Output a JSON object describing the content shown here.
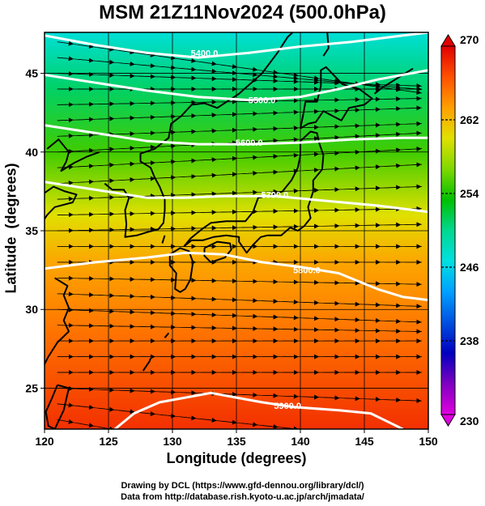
{
  "title": "MSM 21Z11Nov2024 (500.0hPa)",
  "x_axis": {
    "label": "Longitude (degrees)",
    "range": [
      120,
      150
    ],
    "ticks": [
      120,
      125,
      130,
      135,
      140,
      145,
      150
    ]
  },
  "y_axis": {
    "label": "Latitude  (degrees)",
    "range": [
      22.4,
      47.6
    ],
    "ticks": [
      25,
      30,
      35,
      40,
      45
    ]
  },
  "colorbar": {
    "min": 230,
    "max": 270,
    "ticks": [
      230,
      238,
      246,
      254,
      262,
      270
    ],
    "colors": [
      "#e000e0",
      "#8000c0",
      "#0000c0",
      "#0050e0",
      "#00a0ff",
      "#00e0e0",
      "#00d890",
      "#00c000",
      "#80d800",
      "#e0e000",
      "#ffa000",
      "#ff5000",
      "#e00000"
    ]
  },
  "temperature_field": {
    "stops": [
      {
        "lat": 47.6,
        "value": 247
      },
      {
        "lat": 44,
        "value": 251
      },
      {
        "lat": 40,
        "value": 255
      },
      {
        "lat": 36,
        "value": 260
      },
      {
        "lat": 33,
        "value": 263
      },
      {
        "lat": 29,
        "value": 265
      },
      {
        "lat": 22.4,
        "value": 268
      }
    ]
  },
  "contours": [
    {
      "label": "5400.0",
      "label_at": [
        132.5,
        46.3
      ],
      "points": [
        [
          120,
          47.4
        ],
        [
          124,
          46.8
        ],
        [
          128,
          46.3
        ],
        [
          132,
          46.0
        ],
        [
          136,
          46.3
        ],
        [
          140,
          46.7
        ],
        [
          144,
          47.0
        ],
        [
          148,
          47.4
        ],
        [
          150,
          47.6
        ]
      ]
    },
    {
      "label": "5500.0",
      "label_at": [
        137,
        43.3
      ],
      "points": [
        [
          120,
          44.9
        ],
        [
          124,
          44.4
        ],
        [
          128,
          43.9
        ],
        [
          132,
          43.5
        ],
        [
          136,
          43.3
        ],
        [
          140,
          43.5
        ],
        [
          143,
          44.0
        ],
        [
          146,
          44.6
        ],
        [
          150,
          45.2
        ]
      ]
    },
    {
      "label": "5600.0",
      "label_at": [
        136,
        40.6
      ],
      "points": [
        [
          120,
          41.7
        ],
        [
          124,
          41.2
        ],
        [
          128,
          40.7
        ],
        [
          132,
          40.5
        ],
        [
          136,
          40.5
        ],
        [
          140,
          40.6
        ],
        [
          144,
          40.8
        ],
        [
          148,
          40.9
        ],
        [
          150,
          40.9
        ]
      ]
    },
    {
      "label": "5700.0",
      "label_at": [
        138,
        37.3
      ],
      "points": [
        [
          120,
          38.1
        ],
        [
          124,
          37.6
        ],
        [
          128,
          37.1
        ],
        [
          131,
          37.1
        ],
        [
          134,
          37.2
        ],
        [
          138,
          37.2
        ],
        [
          142,
          36.9
        ],
        [
          146,
          36.6
        ],
        [
          150,
          36.2
        ]
      ]
    },
    {
      "label": "5800.0",
      "label_at": [
        140.5,
        32.5
      ],
      "points": [
        [
          120,
          32.6
        ],
        [
          124,
          33.0
        ],
        [
          128,
          33.3
        ],
        [
          131,
          33.6
        ],
        [
          134,
          33.5
        ],
        [
          137,
          33.0
        ],
        [
          140,
          32.7
        ],
        [
          143,
          32.3
        ],
        [
          146,
          31.3
        ],
        [
          148,
          30.8
        ],
        [
          150,
          30.6
        ]
      ]
    },
    {
      "label": "5900.0",
      "label_at": [
        139,
        23.9
      ],
      "points": [
        [
          125.5,
          22.4
        ],
        [
          127,
          23.4
        ],
        [
          129,
          24.1
        ],
        [
          131,
          24.4
        ],
        [
          133,
          24.7
        ],
        [
          135,
          24.4
        ],
        [
          137,
          24.1
        ],
        [
          139.5,
          23.8
        ],
        [
          143,
          23.6
        ],
        [
          145.5,
          23.4
        ],
        [
          147,
          22.8
        ],
        [
          148,
          22.4
        ]
      ]
    }
  ],
  "flow": {
    "rows": [
      {
        "lat": 47.0,
        "dir": -8
      },
      {
        "lat": 46.0,
        "dir": -5
      },
      {
        "lat": 45.0,
        "dir": -2
      },
      {
        "lat": 44.0,
        "dir": 0
      },
      {
        "lat": 43.0,
        "dir": 1
      },
      {
        "lat": 42.0,
        "dir": 2
      },
      {
        "lat": 41.0,
        "dir": 2
      },
      {
        "lat": 40.0,
        "dir": 3
      },
      {
        "lat": 39.0,
        "dir": 3
      },
      {
        "lat": 38.0,
        "dir": 3
      },
      {
        "lat": 37.0,
        "dir": 2
      },
      {
        "lat": 36.0,
        "dir": 1
      },
      {
        "lat": 35.0,
        "dir": 1
      },
      {
        "lat": 34.0,
        "dir": 0
      },
      {
        "lat": 33.0,
        "dir": 0
      },
      {
        "lat": 32.0,
        "dir": -1
      },
      {
        "lat": 31.0,
        "dir": -2
      },
      {
        "lat": 30.0,
        "dir": -2
      },
      {
        "lat": 29.0,
        "dir": -1
      },
      {
        "lat": 28.0,
        "dir": 0
      },
      {
        "lat": 27.0,
        "dir": 0
      },
      {
        "lat": 26.0,
        "dir": 0
      },
      {
        "lat": 25.0,
        "dir": -2
      },
      {
        "lat": 24.0,
        "dir": -6
      },
      {
        "lat": 23.0,
        "dir": -10
      }
    ],
    "lons": [
      121,
      122.6,
      124.2,
      125.8,
      127.4,
      129.0,
      130.6,
      132.2,
      133.8,
      135.4,
      137.0,
      138.6,
      140.2,
      141.8,
      143.4,
      145.0,
      146.6,
      148.2,
      149.5
    ]
  },
  "coastlines": [
    {
      "name": "honshu",
      "points": [
        [
          130.9,
          34.0
        ],
        [
          131.5,
          34.4
        ],
        [
          132.4,
          34.4
        ],
        [
          133.2,
          34.6
        ],
        [
          134.2,
          34.7
        ],
        [
          135.2,
          34.6
        ],
        [
          135.2,
          34.3
        ],
        [
          135.8,
          33.6
        ],
        [
          136.3,
          34.1
        ],
        [
          136.9,
          34.6
        ],
        [
          137.4,
          34.7
        ],
        [
          138.5,
          34.7
        ],
        [
          139.2,
          35.2
        ],
        [
          139.8,
          35.0
        ],
        [
          140.3,
          35.3
        ],
        [
          140.8,
          35.8
        ],
        [
          140.6,
          36.5
        ],
        [
          141.0,
          37.5
        ],
        [
          141.0,
          38.2
        ],
        [
          141.7,
          38.9
        ],
        [
          141.8,
          39.8
        ],
        [
          141.5,
          40.5
        ],
        [
          141.3,
          41.2
        ],
        [
          140.8,
          41.3
        ],
        [
          140.0,
          40.7
        ],
        [
          140.0,
          39.8
        ],
        [
          139.8,
          39.0
        ],
        [
          139.3,
          38.2
        ],
        [
          138.6,
          37.5
        ],
        [
          137.5,
          37.2
        ],
        [
          136.7,
          37.1
        ],
        [
          136.3,
          36.2
        ],
        [
          135.7,
          35.6
        ],
        [
          134.2,
          35.6
        ],
        [
          133.0,
          35.5
        ],
        [
          132.3,
          35.1
        ],
        [
          131.4,
          34.5
        ],
        [
          130.9,
          34.0
        ]
      ]
    },
    {
      "name": "hokkaido",
      "points": [
        [
          140.0,
          41.5
        ],
        [
          140.6,
          41.8
        ],
        [
          141.2,
          41.9
        ],
        [
          141.8,
          42.6
        ],
        [
          143.2,
          42.0
        ],
        [
          143.8,
          42.8
        ],
        [
          145.0,
          43.0
        ],
        [
          145.6,
          43.4
        ],
        [
          144.6,
          44.0
        ],
        [
          143.3,
          44.3
        ],
        [
          142.0,
          45.4
        ],
        [
          141.6,
          45.2
        ],
        [
          141.6,
          44.2
        ],
        [
          141.3,
          43.2
        ],
        [
          140.4,
          43.2
        ],
        [
          140.2,
          42.3
        ],
        [
          140.0,
          41.5
        ]
      ]
    },
    {
      "name": "kyushu",
      "points": [
        [
          129.8,
          33.5
        ],
        [
          130.6,
          33.9
        ],
        [
          131.3,
          33.7
        ],
        [
          131.6,
          33.0
        ],
        [
          131.4,
          31.9
        ],
        [
          131.0,
          31.3
        ],
        [
          130.6,
          31.1
        ],
        [
          130.2,
          31.3
        ],
        [
          130.3,
          32.3
        ],
        [
          129.8,
          32.8
        ],
        [
          129.8,
          33.5
        ]
      ]
    },
    {
      "name": "shikoku",
      "points": [
        [
          132.5,
          33.9
        ],
        [
          133.5,
          34.3
        ],
        [
          134.5,
          34.2
        ],
        [
          134.6,
          33.8
        ],
        [
          134.1,
          33.3
        ],
        [
          133.0,
          33.0
        ],
        [
          132.5,
          33.4
        ],
        [
          132.5,
          33.9
        ]
      ]
    },
    {
      "name": "korea",
      "points": [
        [
          124.7,
          38.0
        ],
        [
          125.3,
          37.6
        ],
        [
          126.2,
          37.6
        ],
        [
          126.6,
          37.1
        ],
        [
          126.3,
          36.3
        ],
        [
          126.4,
          35.4
        ],
        [
          126.3,
          34.6
        ],
        [
          127.2,
          34.7
        ],
        [
          128.0,
          34.9
        ],
        [
          128.9,
          35.1
        ],
        [
          129.3,
          35.5
        ],
        [
          129.4,
          36.3
        ],
        [
          129.4,
          37.0
        ],
        [
          129.0,
          37.8
        ],
        [
          128.6,
          38.4
        ],
        [
          128.3,
          39.0
        ],
        [
          127.5,
          39.4
        ],
        [
          127.5,
          39.9
        ],
        [
          128.6,
          40.2
        ],
        [
          129.7,
          40.9
        ],
        [
          129.9,
          41.8
        ],
        [
          130.7,
          42.3
        ]
      ]
    },
    {
      "name": "china-north-coast",
      "points": [
        [
          124.3,
          40.0
        ],
        [
          123.3,
          39.7
        ],
        [
          122.3,
          39.3
        ],
        [
          121.3,
          38.8
        ],
        [
          121.7,
          39.4
        ],
        [
          121.9,
          40.0
        ],
        [
          121.1,
          40.8
        ],
        [
          120.2,
          40.2
        ]
      ]
    },
    {
      "name": "shandong",
      "points": [
        [
          120.0,
          37.4
        ],
        [
          120.7,
          37.8
        ],
        [
          121.6,
          37.5
        ],
        [
          122.5,
          37.3
        ],
        [
          122.2,
          36.8
        ],
        [
          120.8,
          36.5
        ],
        [
          120.2,
          36.0
        ],
        [
          119.8,
          35.5
        ]
      ]
    },
    {
      "name": "china-east-coast",
      "points": [
        [
          120.8,
          32.0
        ],
        [
          121.8,
          31.5
        ],
        [
          121.5,
          30.9
        ],
        [
          121.9,
          30.1
        ],
        [
          121.5,
          29.3
        ],
        [
          121.9,
          28.6
        ],
        [
          121.0,
          27.9
        ],
        [
          120.3,
          27.0
        ],
        [
          119.8,
          26.2
        ]
      ]
    },
    {
      "name": "taiwan",
      "points": [
        [
          121.0,
          25.2
        ],
        [
          121.9,
          25.0
        ],
        [
          121.5,
          23.6
        ],
        [
          120.8,
          22.4
        ],
        [
          120.3,
          22.6
        ],
        [
          120.1,
          23.5
        ],
        [
          120.6,
          24.4
        ],
        [
          121.0,
          25.2
        ]
      ]
    },
    {
      "name": "russia-coast",
      "points": [
        [
          130.7,
          42.3
        ],
        [
          131.5,
          43.0
        ],
        [
          132.5,
          43.1
        ],
        [
          133.5,
          42.8
        ],
        [
          135.2,
          43.7
        ],
        [
          137.0,
          45.0
        ],
        [
          138.2,
          46.3
        ],
        [
          139.0,
          47.3
        ],
        [
          139.4,
          47.6
        ]
      ]
    },
    {
      "name": "sakhalin",
      "points": [
        [
          141.8,
          46.1
        ],
        [
          142.2,
          46.6
        ],
        [
          142.1,
          47.6
        ]
      ]
    },
    {
      "name": "kuril-1",
      "points": [
        [
          145.8,
          43.7
        ],
        [
          146.4,
          44.1
        ],
        [
          147.2,
          44.5
        ],
        [
          148.0,
          44.9
        ],
        [
          148.8,
          45.3
        ]
      ]
    },
    {
      "name": "ryukyu-1",
      "points": [
        [
          127.7,
          26.1
        ],
        [
          128.2,
          26.7
        ],
        [
          128.3,
          26.9
        ]
      ]
    },
    {
      "name": "ryukyu-2",
      "points": [
        [
          129.4,
          28.2
        ],
        [
          129.7,
          28.5
        ]
      ]
    },
    {
      "name": "tsushima",
      "points": [
        [
          129.2,
          34.2
        ],
        [
          129.4,
          34.7
        ]
      ]
    }
  ]
}
